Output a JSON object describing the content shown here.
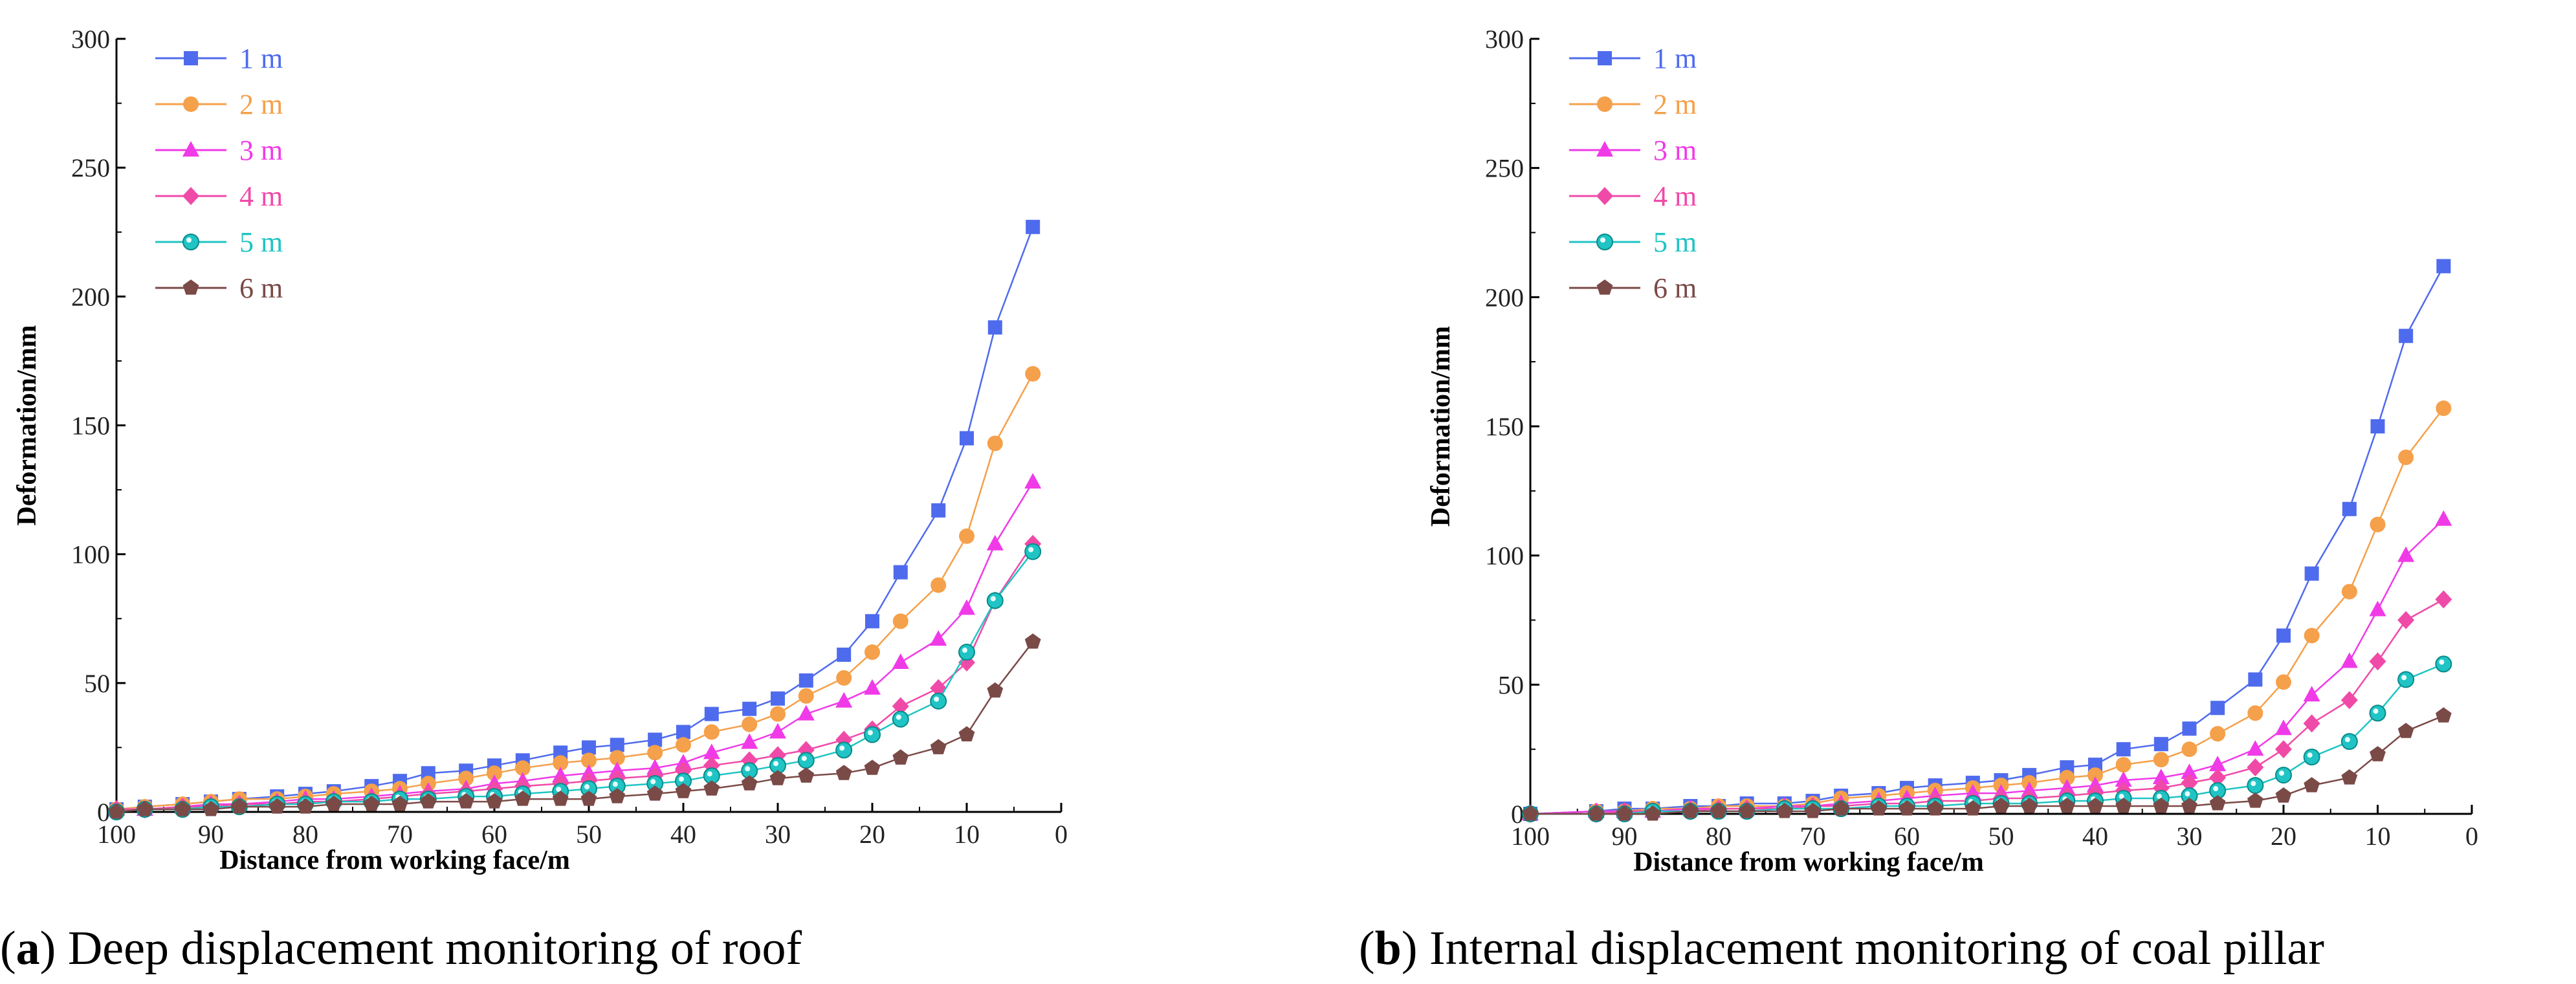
{
  "chart_data": [
    {
      "type": "line",
      "panel": "a",
      "caption_letter": "a",
      "caption_text": " Deep displacement monitoring of roof",
      "xlabel": "Distance from working face/m",
      "ylabel": "Deformation/mm",
      "xlim": [
        100,
        0
      ],
      "ylim": [
        0,
        300
      ],
      "x_ticks": [
        "100",
        "90",
        "80",
        "70",
        "60",
        "50",
        "40",
        "30",
        "20",
        "10",
        "0"
      ],
      "y_ticks": [
        "0",
        "50",
        "100",
        "150",
        "200",
        "250",
        "300"
      ],
      "x": [
        100,
        97,
        93,
        90,
        87,
        83,
        80,
        77,
        73,
        70,
        67,
        63,
        60,
        57,
        53,
        50,
        47,
        43,
        40,
        37,
        33,
        30,
        27,
        23,
        20,
        17,
        13,
        10,
        7,
        3
      ],
      "series": [
        {
          "name": "1 m",
          "color": "#4f6bed",
          "marker": "square",
          "values": [
            1,
            2,
            3,
            4,
            5,
            6,
            7,
            8,
            10,
            12,
            15,
            16,
            18,
            20,
            23,
            25,
            26,
            28,
            31,
            38,
            40,
            44,
            51,
            61,
            74,
            93,
            117,
            145,
            188,
            227
          ]
        },
        {
          "name": "2 m",
          "color": "#f5a04a",
          "marker": "circle",
          "values": [
            1,
            2,
            3,
            4,
            5,
            5,
            6,
            7,
            8,
            9,
            11,
            13,
            15,
            17,
            19,
            20,
            21,
            23,
            26,
            31,
            34,
            38,
            45,
            52,
            62,
            74,
            88,
            107,
            143,
            170
          ]
        },
        {
          "name": "3 m",
          "color": "#f03ae8",
          "marker": "triangle",
          "values": [
            1,
            1,
            2,
            3,
            3,
            4,
            5,
            5,
            6,
            7,
            8,
            9,
            11,
            12,
            14,
            15,
            16,
            17,
            19,
            23,
            27,
            31,
            38,
            43,
            48,
            58,
            67,
            79,
            104,
            128
          ]
        },
        {
          "name": "4 m",
          "color": "#f04aa8",
          "marker": "diamond",
          "values": [
            1,
            1,
            2,
            2,
            3,
            3,
            4,
            4,
            5,
            6,
            7,
            8,
            9,
            10,
            11,
            12,
            13,
            14,
            16,
            18,
            20,
            22,
            24,
            28,
            32,
            41,
            48,
            58,
            82,
            104
          ]
        },
        {
          "name": "5 m",
          "color": "#20c4c4",
          "marker": "sphere",
          "values": [
            0,
            1,
            1,
            2,
            2,
            3,
            3,
            4,
            4,
            5,
            5,
            6,
            6,
            7,
            8,
            9,
            10,
            11,
            12,
            14,
            16,
            18,
            20,
            24,
            30,
            36,
            43,
            62,
            82,
            101
          ]
        },
        {
          "name": "6 m",
          "color": "#7a4a47",
          "marker": "pentagon",
          "values": [
            0,
            1,
            1,
            1,
            2,
            2,
            2,
            3,
            3,
            3,
            4,
            4,
            4,
            5,
            5,
            5,
            6,
            7,
            8,
            9,
            11,
            13,
            14,
            15,
            17,
            21,
            25,
            30,
            47,
            66
          ]
        }
      ]
    },
    {
      "type": "line",
      "panel": "b",
      "caption_letter": "b",
      "caption_text": " Internal displacement monitoring of coal pillar",
      "xlabel": "Distance from working face/m",
      "ylabel": "Deformation/mm",
      "xlim": [
        100,
        0
      ],
      "ylim": [
        0,
        300
      ],
      "x_ticks": [
        "100",
        "90",
        "80",
        "70",
        "60",
        "50",
        "40",
        "30",
        "20",
        "10",
        "0"
      ],
      "y_ticks": [
        "0",
        "50",
        "100",
        "150",
        "200",
        "250",
        "300"
      ],
      "x": [
        100,
        93,
        90,
        87,
        83,
        80,
        77,
        73,
        70,
        67,
        63,
        60,
        57,
        53,
        50,
        47,
        43,
        40,
        37,
        33,
        30,
        27,
        23,
        20,
        17,
        13,
        10,
        7,
        3
      ],
      "series": [
        {
          "name": "1 m",
          "color": "#4f6bed",
          "marker": "square",
          "values": [
            0,
            1,
            2,
            2,
            3,
            3,
            4,
            4,
            5,
            7,
            8,
            10,
            11,
            12,
            13,
            15,
            18,
            19,
            25,
            27,
            33,
            41,
            52,
            69,
            93,
            118,
            150,
            185,
            212
          ]
        },
        {
          "name": "2 m",
          "color": "#f5a04a",
          "marker": "circle",
          "values": [
            0,
            1,
            1,
            2,
            2,
            3,
            3,
            3,
            4,
            6,
            7,
            8,
            9,
            10,
            11,
            12,
            14,
            15,
            19,
            21,
            25,
            31,
            39,
            51,
            69,
            86,
            112,
            138,
            157
          ]
        },
        {
          "name": "3 m",
          "color": "#f03ae8",
          "marker": "triangle",
          "values": [
            0,
            1,
            1,
            1,
            2,
            2,
            2,
            3,
            3,
            4,
            5,
            6,
            7,
            8,
            8,
            9,
            10,
            11,
            13,
            14,
            16,
            19,
            25,
            33,
            46,
            59,
            79,
            100,
            114
          ]
        },
        {
          "name": "4 m",
          "color": "#f04aa8",
          "marker": "diamond",
          "values": [
            0,
            0,
            1,
            1,
            1,
            2,
            2,
            2,
            3,
            3,
            4,
            4,
            5,
            5,
            6,
            6,
            7,
            8,
            9,
            10,
            12,
            14,
            18,
            25,
            35,
            44,
            59,
            75,
            83
          ]
        },
        {
          "name": "5 m",
          "color": "#20c4c4",
          "marker": "sphere",
          "values": [
            0,
            0,
            0,
            1,
            1,
            1,
            1,
            2,
            2,
            2,
            3,
            3,
            3,
            4,
            4,
            4,
            5,
            5,
            6,
            6,
            7,
            9,
            11,
            15,
            22,
            28,
            39,
            52,
            58
          ]
        },
        {
          "name": "6 m",
          "color": "#7a4a47",
          "marker": "pentagon",
          "values": [
            0,
            0,
            0,
            0,
            1,
            1,
            1,
            1,
            1,
            2,
            2,
            2,
            2,
            2,
            3,
            3,
            3,
            3,
            3,
            3,
            3,
            4,
            5,
            7,
            11,
            14,
            23,
            32,
            38
          ]
        }
      ]
    }
  ]
}
